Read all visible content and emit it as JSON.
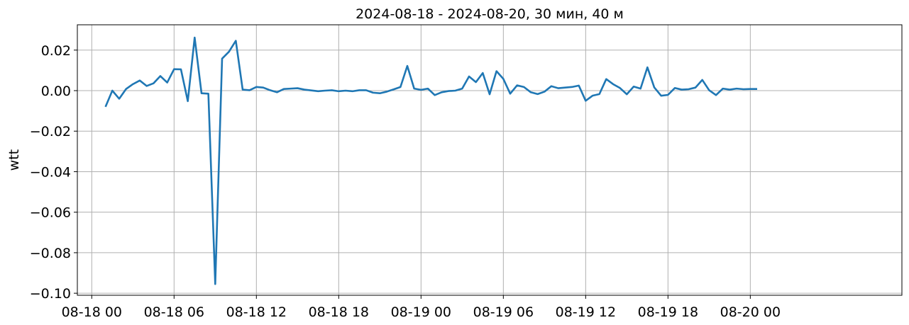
{
  "chart_data": {
    "type": "line",
    "title": "2024-08-18 - 2024-08-20, 30 мин, 40 м",
    "xlabel": "",
    "ylabel": "wtt",
    "grid": true,
    "x_domain_hours": [
      -1.05,
      59.05
    ],
    "ylim": [
      -0.101,
      0.0325
    ],
    "x_ticks": [
      {
        "label": "08-18 00",
        "hours": 0
      },
      {
        "label": "08-18 06",
        "hours": 6
      },
      {
        "label": "08-18 12",
        "hours": 12
      },
      {
        "label": "08-18 18",
        "hours": 18
      },
      {
        "label": "08-19 00",
        "hours": 24
      },
      {
        "label": "08-19 06",
        "hours": 30
      },
      {
        "label": "08-19 12",
        "hours": 36
      },
      {
        "label": "08-19 18",
        "hours": 42
      },
      {
        "label": "08-20 00",
        "hours": 48
      }
    ],
    "y_ticks": [
      {
        "label": "0.02",
        "value": 0.02
      },
      {
        "label": "0.00",
        "value": 0.0
      },
      {
        "label": "−0.02",
        "value": -0.02
      },
      {
        "label": "−0.04",
        "value": -0.04
      },
      {
        "label": "−0.06",
        "value": -0.06
      },
      {
        "label": "−0.08",
        "value": -0.08
      },
      {
        "label": "−0.10",
        "value": -0.1
      }
    ],
    "series": [
      {
        "color": "#1f77b4",
        "x_start_hours": 1.0,
        "x_step_hours": 0.5,
        "values": [
          -0.008,
          0.0,
          -0.004,
          0.0008,
          0.0032,
          0.005,
          0.0023,
          0.0036,
          0.0072,
          0.004,
          0.0106,
          0.0105,
          -0.0052,
          0.0262,
          -0.0013,
          -0.0015,
          -0.0955,
          0.0158,
          0.0192,
          0.0246,
          0.0005,
          0.0002,
          0.0018,
          0.0015,
          0.0002,
          -0.0008,
          0.0008,
          0.001,
          0.0012,
          0.0005,
          0.0001,
          -0.0003,
          0.0,
          0.0002,
          -0.0003,
          0.0,
          -0.0003,
          0.0002,
          0.0002,
          -0.001,
          -0.0013,
          -0.0005,
          0.0006,
          0.0018,
          0.0122,
          0.001,
          0.0004,
          0.001,
          -0.0022,
          -0.0008,
          -0.0002,
          0.0,
          0.001,
          0.007,
          0.0042,
          0.0087,
          -0.0018,
          0.0096,
          0.0058,
          -0.0015,
          0.0026,
          0.0018,
          -0.0008,
          -0.0017,
          -0.0005,
          0.0022,
          0.0012,
          0.0015,
          0.0018,
          0.0025,
          -0.005,
          -0.0025,
          -0.0017,
          0.0057,
          0.0032,
          0.0013,
          -0.0018,
          0.002,
          0.001,
          0.0115,
          0.0016,
          -0.0025,
          -0.0021,
          0.0013,
          0.0005,
          0.0007,
          0.0015,
          0.0053,
          0.0002,
          -0.0022,
          0.001,
          0.0005,
          0.001,
          0.0007,
          0.0008,
          0.0008
        ]
      }
    ]
  }
}
